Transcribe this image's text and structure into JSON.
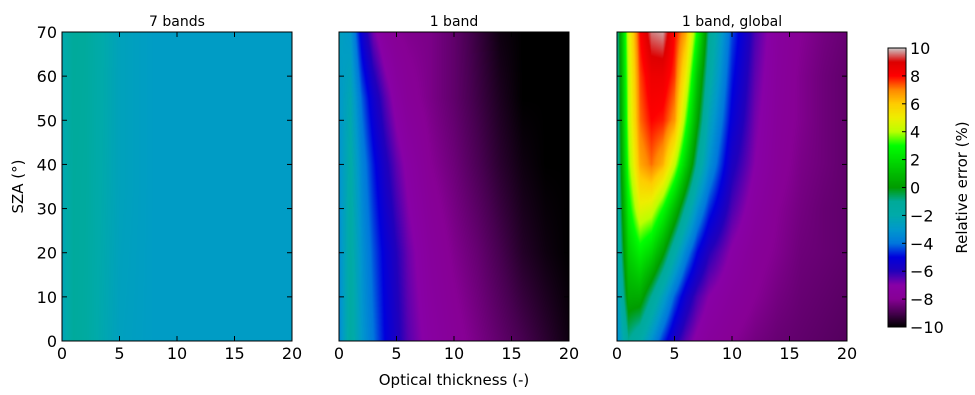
{
  "figure": {
    "xlabel": "Optical thickness (-)",
    "ylabel": "SZA (°)",
    "colorbar_label": "Relative error (%)"
  },
  "chart_data": [
    {
      "type": "heatmap",
      "title": "7 bands",
      "xlabel": "Optical thickness (-)",
      "ylabel": "SZA (°)",
      "xlim": [
        0,
        20
      ],
      "ylim": [
        0,
        70
      ],
      "xticks": [
        0,
        5,
        10,
        15,
        20
      ],
      "yticks": [
        0,
        10,
        20,
        30,
        40,
        50,
        60,
        70
      ],
      "tau": [
        0,
        1,
        2,
        3,
        5,
        8,
        12,
        16,
        20
      ],
      "sza": [
        0,
        35,
        70
      ],
      "values": [
        [
          -2.5,
          -1.2,
          -1.4,
          -2.0,
          -2.6,
          -2.8,
          -2.8,
          -2.8,
          -2.8
        ],
        [
          -2.4,
          -1.2,
          -1.3,
          -1.9,
          -2.5,
          -2.8,
          -2.8,
          -2.8,
          -2.8
        ],
        [
          -2.2,
          -1.1,
          -1.2,
          -1.8,
          -2.5,
          -2.8,
          -2.8,
          -2.8,
          -2.8
        ]
      ]
    },
    {
      "type": "heatmap",
      "title": "1 band",
      "xlabel": "Optical thickness (-)",
      "xlim": [
        0,
        20
      ],
      "ylim": [
        0,
        70
      ],
      "xticks": [
        0,
        5,
        10,
        15,
        20
      ],
      "tau": [
        0,
        1,
        2,
        3,
        4,
        5,
        6,
        8,
        10,
        12,
        14,
        16,
        18,
        20
      ],
      "sza": [
        0,
        20,
        40,
        55,
        70
      ],
      "values": [
        [
          -3.5,
          -1.5,
          -3.0,
          -4.0,
          -5.0,
          -5.8,
          -6.5,
          -7.3,
          -7.8,
          -8.2,
          -8.6,
          -9.0,
          -9.4,
          -9.8
        ],
        [
          -3.4,
          -1.6,
          -3.2,
          -4.3,
          -5.2,
          -6.0,
          -6.7,
          -7.6,
          -8.1,
          -8.5,
          -9.0,
          -9.5,
          -9.8,
          -10.0
        ],
        [
          -3.2,
          -1.8,
          -3.6,
          -4.8,
          -5.8,
          -6.6,
          -7.2,
          -8.0,
          -8.4,
          -8.9,
          -9.4,
          -9.8,
          -10.0,
          -10.0
        ],
        [
          -3.0,
          -2.2,
          -4.2,
          -5.5,
          -6.5,
          -7.3,
          -7.8,
          -8.2,
          -8.6,
          -9.1,
          -9.6,
          -10.0,
          -10.0,
          -10.0
        ],
        [
          -2.6,
          -3.0,
          -5.4,
          -6.8,
          -7.6,
          -8.0,
          -8.1,
          -8.2,
          -8.6,
          -9.2,
          -9.8,
          -10.0,
          -10.0,
          -10.0
        ]
      ]
    },
    {
      "type": "heatmap",
      "title": "1 band, global",
      "xlabel": "Optical thickness (-)",
      "xlim": [
        0,
        20
      ],
      "ylim": [
        0,
        70
      ],
      "xticks": [
        0,
        5,
        10,
        15,
        20
      ],
      "tau": [
        0,
        1,
        2,
        3,
        4,
        5,
        6,
        7,
        8,
        10,
        12,
        14,
        16,
        18,
        20
      ],
      "sza": [
        0,
        10,
        20,
        30,
        40,
        50,
        60,
        70
      ],
      "values": [
        [
          -3.5,
          -1.0,
          -1.8,
          -3.2,
          -4.6,
          -5.8,
          -6.6,
          -7.2,
          -7.6,
          -8.0,
          -8.3,
          -8.5,
          -8.6,
          -8.7,
          -8.8
        ],
        [
          -3.0,
          0.5,
          0.5,
          -1.0,
          -2.6,
          -4.2,
          -5.5,
          -6.4,
          -7.0,
          -7.6,
          -8.0,
          -8.3,
          -8.5,
          -8.6,
          -8.7
        ],
        [
          -2.5,
          1.6,
          2.6,
          1.8,
          0.2,
          -1.8,
          -3.6,
          -5.0,
          -6.0,
          -7.1,
          -7.8,
          -8.1,
          -8.4,
          -8.5,
          -8.6
        ],
        [
          -2.2,
          2.6,
          4.8,
          4.5,
          3.0,
          1.0,
          -1.2,
          -3.2,
          -4.6,
          -6.4,
          -7.4,
          -8.0,
          -8.3,
          -8.5,
          -8.6
        ],
        [
          -2.0,
          3.5,
          6.5,
          7.2,
          6.4,
          4.2,
          1.5,
          -1.2,
          -3.2,
          -5.8,
          -7.0,
          -7.8,
          -8.2,
          -8.4,
          -8.6
        ],
        [
          -1.8,
          4.0,
          7.2,
          8.0,
          7.8,
          6.8,
          3.4,
          0.2,
          -2.4,
          -5.2,
          -6.8,
          -7.7,
          -8.1,
          -8.4,
          -8.6
        ],
        [
          -1.6,
          4.2,
          7.5,
          8.5,
          8.5,
          7.6,
          5.0,
          1.2,
          -1.6,
          -4.8,
          -6.6,
          -7.6,
          -8.1,
          -8.4,
          -8.6
        ],
        [
          -1.4,
          4.5,
          8.0,
          9.6,
          9.8,
          8.0,
          6.5,
          2.8,
          -1.0,
          -4.4,
          -6.4,
          -7.5,
          -8.0,
          -8.3,
          -8.5
        ]
      ]
    }
  ],
  "colorbar": {
    "min": -10,
    "max": 10,
    "ticks": [
      -10,
      -8,
      -6,
      -4,
      -2,
      0,
      2,
      4,
      6,
      8,
      10
    ],
    "colormap": "nipy_spectral",
    "stops": [
      [
        0.0,
        "#000000"
      ],
      [
        0.05,
        "#470050"
      ],
      [
        0.1,
        "#870095"
      ],
      [
        0.15,
        "#8800a7"
      ],
      [
        0.2,
        "#2200bb"
      ],
      [
        0.25,
        "#0000dd"
      ],
      [
        0.3,
        "#0077dd"
      ],
      [
        0.35,
        "#0099cc"
      ],
      [
        0.4,
        "#00aaaa"
      ],
      [
        0.45,
        "#00aa99"
      ],
      [
        0.5,
        "#009c00"
      ],
      [
        0.55,
        "#00bb00"
      ],
      [
        0.6,
        "#00dd00"
      ],
      [
        0.65,
        "#00ff00"
      ],
      [
        0.7,
        "#bbff00"
      ],
      [
        0.75,
        "#eeee00"
      ],
      [
        0.8,
        "#ffcc00"
      ],
      [
        0.85,
        "#ff8800"
      ],
      [
        0.9,
        "#ff0000"
      ],
      [
        0.95,
        "#dd0000"
      ],
      [
        1.0,
        "#cccccc"
      ]
    ]
  }
}
